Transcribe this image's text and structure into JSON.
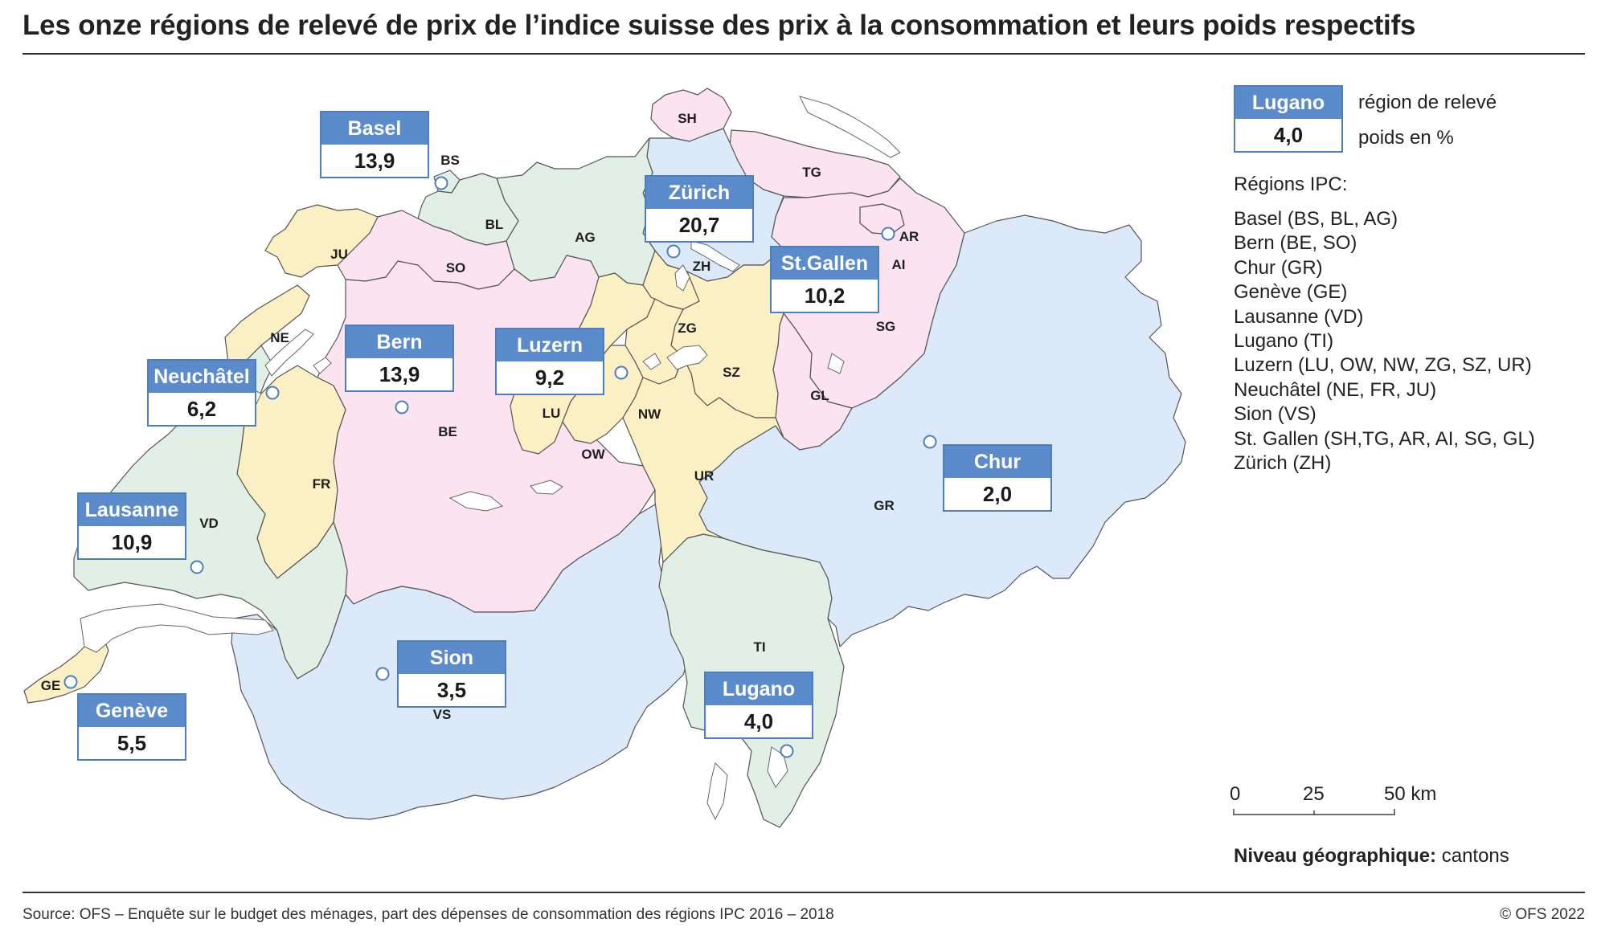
{
  "title": "Les onze régions de relevé de prix de l’indice suisse des prix à la consommation et leurs poids respectifs",
  "colors": {
    "pink": "#fbe3f0",
    "green": "#e2efe5",
    "yellow": "#fbf0c4",
    "blue": "#dce9f8",
    "lake": "#ffffff",
    "border": "#555555",
    "box_header": "#5b8bcb",
    "box_border": "#4d7fc0",
    "point": "#4d7fc0"
  },
  "map": {
    "cantons": [
      {
        "code": "SH",
        "region": "St.Gallen"
      },
      {
        "code": "TG",
        "region": "St.Gallen"
      },
      {
        "code": "AR",
        "region": "St.Gallen"
      },
      {
        "code": "AI",
        "region": "St.Gallen"
      },
      {
        "code": "SG",
        "region": "St.Gallen"
      },
      {
        "code": "GL",
        "region": "St.Gallen"
      },
      {
        "code": "ZH",
        "region": "Zürich"
      },
      {
        "code": "AG",
        "region": "Basel"
      },
      {
        "code": "BS",
        "region": "Basel"
      },
      {
        "code": "BL",
        "region": "Basel"
      },
      {
        "code": "SO",
        "region": "Bern"
      },
      {
        "code": "BE",
        "region": "Bern"
      },
      {
        "code": "JU",
        "region": "Neuchâtel"
      },
      {
        "code": "NE",
        "region": "Neuchâtel"
      },
      {
        "code": "FR",
        "region": "Neuchâtel"
      },
      {
        "code": "VD",
        "region": "Lausanne"
      },
      {
        "code": "GE",
        "region": "Genève"
      },
      {
        "code": "VS",
        "region": "Sion"
      },
      {
        "code": "TI",
        "region": "Lugano"
      },
      {
        "code": "GR",
        "region": "Chur"
      },
      {
        "code": "LU",
        "region": "Luzern"
      },
      {
        "code": "ZG",
        "region": "Luzern"
      },
      {
        "code": "SZ",
        "region": "Luzern"
      },
      {
        "code": "NW",
        "region": "Luzern"
      },
      {
        "code": "OW",
        "region": "Luzern"
      },
      {
        "code": "UR",
        "region": "Luzern"
      }
    ],
    "regions": [
      {
        "name": "Basel",
        "weight": "13,9"
      },
      {
        "name": "Zürich",
        "weight": "20,7"
      },
      {
        "name": "St.Gallen",
        "weight": "10,2"
      },
      {
        "name": "Bern",
        "weight": "13,9"
      },
      {
        "name": "Luzern",
        "weight": "9,2"
      },
      {
        "name": "Neuchâtel",
        "weight": "6,2"
      },
      {
        "name": "Lausanne",
        "weight": "10,9"
      },
      {
        "name": "Chur",
        "weight": "2,0"
      },
      {
        "name": "Sion",
        "weight": "3,5"
      },
      {
        "name": "Lugano",
        "weight": "4,0"
      },
      {
        "name": "Genève",
        "weight": "5,5"
      }
    ]
  },
  "legend": {
    "sample_region": "Lugano",
    "sample_weight": "4,0",
    "region_desc": "région de relevé",
    "weight_desc": "poids en %",
    "regions_title": "Régions IPC:",
    "regions": [
      "Basel (BS, BL, AG)",
      "Bern (BE, SO)",
      "Chur (GR)",
      "Genève (GE)",
      "Lausanne (VD)",
      "Lugano (TI)",
      "Luzern (LU, OW, NW, ZG, SZ, UR)",
      "Neuchâtel (NE, FR, JU)",
      "Sion (VS)",
      "St. Gallen (SH,TG, AR, AI, SG, GL)",
      "Zürich (ZH)"
    ]
  },
  "scale": {
    "ticks": [
      "0",
      "25",
      "50 km"
    ]
  },
  "niveau": {
    "label": "Niveau géographique:",
    "value": " cantons"
  },
  "source": "Source: OFS – Enquête sur le budget des ménages, part des dépenses de consommation des régions IPC 2016 – 2018",
  "copyright": "© OFS 2022"
}
